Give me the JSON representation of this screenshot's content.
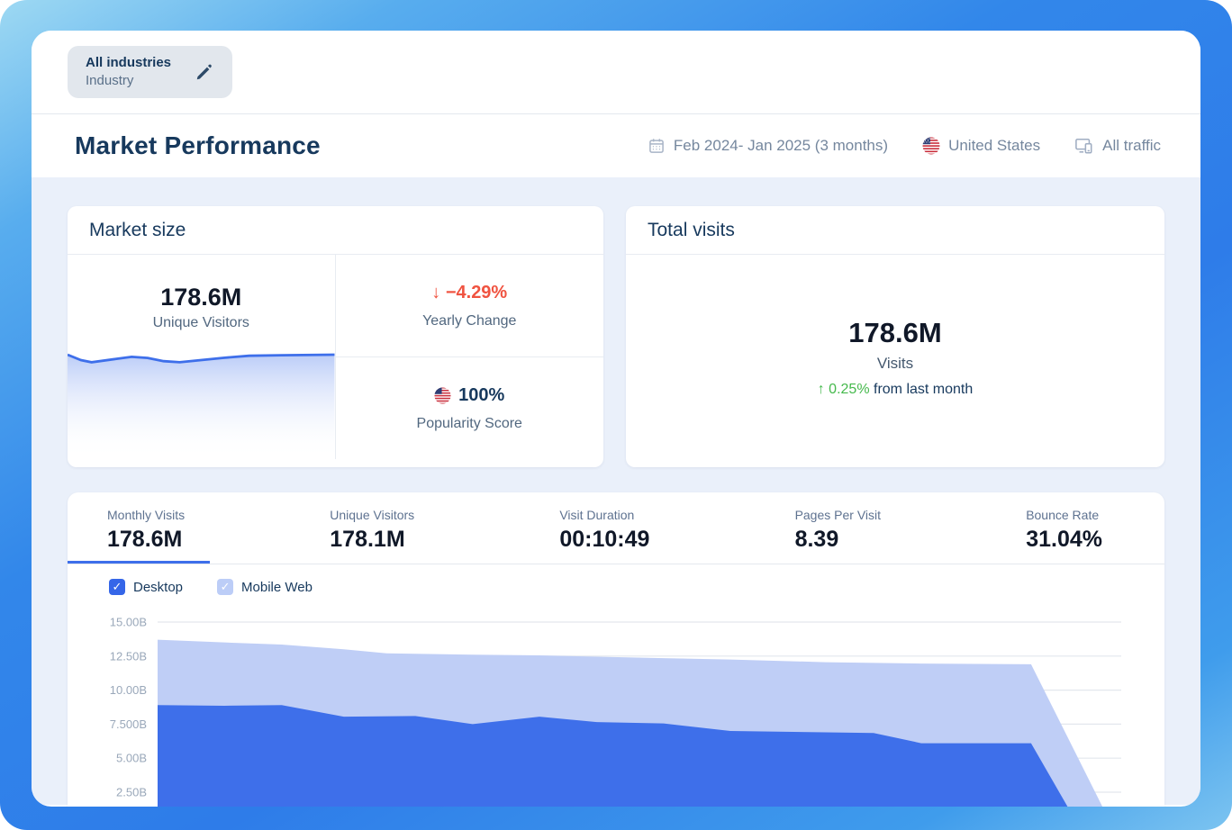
{
  "colors": {
    "accent_blue": "#3E6FEA",
    "light_blue": "#BFCEF6",
    "navy": "#17395D",
    "text_dark": "#101828",
    "text_gray": "#51677F",
    "muted_gray": "#75879E",
    "red": "#F05340",
    "green": "#45B94C",
    "content_bg": "#EAF0FA",
    "card_border": "#E8ECF2"
  },
  "topbar": {
    "badge_title": "All industries",
    "badge_subtitle": "Industry"
  },
  "header": {
    "title": "Market Performance",
    "date_range": "Feb 2024- Jan 2025 (3 months)",
    "country": "United States",
    "traffic_filter": "All traffic"
  },
  "market_size": {
    "title": "Market size",
    "unique_visitors": {
      "value": "178.6M",
      "label": "Unique Visitors"
    },
    "yearly_change": {
      "arrow": "↓",
      "value": "−4.29%",
      "label": "Yearly Change"
    },
    "popularity": {
      "value": "100%",
      "label": "Popularity Score"
    }
  },
  "total_visits": {
    "title": "Total visits",
    "value": "178.6M",
    "label": "Visits",
    "change": {
      "arrow": "↑",
      "value": "0.25%",
      "suffix": "from last month"
    }
  },
  "metric_tabs": [
    {
      "label": "Monthly Visits",
      "value": "178.6M",
      "active": true
    },
    {
      "label": "Unique Visitors",
      "value": "178.1M",
      "active": false
    },
    {
      "label": "Visit Duration",
      "value": "00:10:49",
      "active": false
    },
    {
      "label": "Pages Per Visit",
      "value": "8.39",
      "active": false
    },
    {
      "label": "Bounce Rate",
      "value": "31.04%",
      "active": false
    }
  ],
  "legend": [
    {
      "label": "Desktop",
      "checked": true,
      "color": "#3566E8",
      "check": "✓"
    },
    {
      "label": "Mobile Web",
      "checked": true,
      "color": "#BCCDF7",
      "check": "✓"
    }
  ],
  "chart_data": [
    {
      "id": "traffic-trend",
      "type": "area",
      "stacked": true,
      "title": "",
      "xlabel": "",
      "ylabel": "",
      "yticks": [
        "15.00B",
        "12.50B",
        "10.00B",
        "7.500B",
        "5.00B",
        "2.50B"
      ],
      "ytick_values": [
        15,
        12.5,
        10,
        7.5,
        5,
        2.5
      ],
      "ylim": [
        0,
        16.3
      ],
      "grid": true,
      "legend_position": "top-left",
      "note": "x is fraction of plot width (Feb 2024 - Jan 2025); values in billions of visits; sharp drop at right edge is the partial final month",
      "series": [
        {
          "name": "Desktop",
          "color": "#3E6FEA",
          "points": [
            [
              0,
              8.9
            ],
            [
              0.07,
              8.85
            ],
            [
              0.13,
              8.9
            ],
            [
              0.195,
              8.05
            ],
            [
              0.27,
              8.1
            ],
            [
              0.33,
              7.5
            ],
            [
              0.4,
              8.05
            ],
            [
              0.46,
              7.65
            ],
            [
              0.53,
              7.55
            ],
            [
              0.6,
              7.0
            ],
            [
              0.7,
              6.9
            ],
            [
              0.75,
              6.85
            ],
            [
              0.8,
              6.1
            ],
            [
              0.915,
              6.1
            ],
            [
              0.965,
              0
            ]
          ]
        },
        {
          "name": "Mobile Web (points are stacked totals = Desktop + Mobile Web)",
          "color": "#BFCEF6",
          "points": [
            [
              0,
              13.7
            ],
            [
              0.07,
              13.5
            ],
            [
              0.13,
              13.35
            ],
            [
              0.195,
              13.0
            ],
            [
              0.24,
              12.7
            ],
            [
              0.33,
              12.6
            ],
            [
              0.4,
              12.55
            ],
            [
              0.53,
              12.35
            ],
            [
              0.6,
              12.25
            ],
            [
              0.7,
              12.05
            ],
            [
              0.8,
              11.95
            ],
            [
              0.915,
              11.9
            ],
            [
              1.0,
              0
            ]
          ]
        }
      ]
    },
    {
      "id": "unique-visitors-sparkline",
      "type": "area",
      "grid": false,
      "ylim": [
        0,
        1
      ],
      "note": "normalized sparkline under Unique Visitors stat",
      "series": [
        {
          "name": "Unique Visitors trend",
          "color": "#3E6FEA",
          "points": [
            [
              0,
              0.95
            ],
            [
              0.05,
              0.9
            ],
            [
              0.09,
              0.88
            ],
            [
              0.18,
              0.91
            ],
            [
              0.24,
              0.93
            ],
            [
              0.3,
              0.92
            ],
            [
              0.36,
              0.89
            ],
            [
              0.42,
              0.88
            ],
            [
              0.5,
              0.9
            ],
            [
              0.58,
              0.92
            ],
            [
              0.68,
              0.94
            ],
            [
              0.8,
              0.945
            ],
            [
              1,
              0.95
            ]
          ]
        }
      ]
    }
  ]
}
